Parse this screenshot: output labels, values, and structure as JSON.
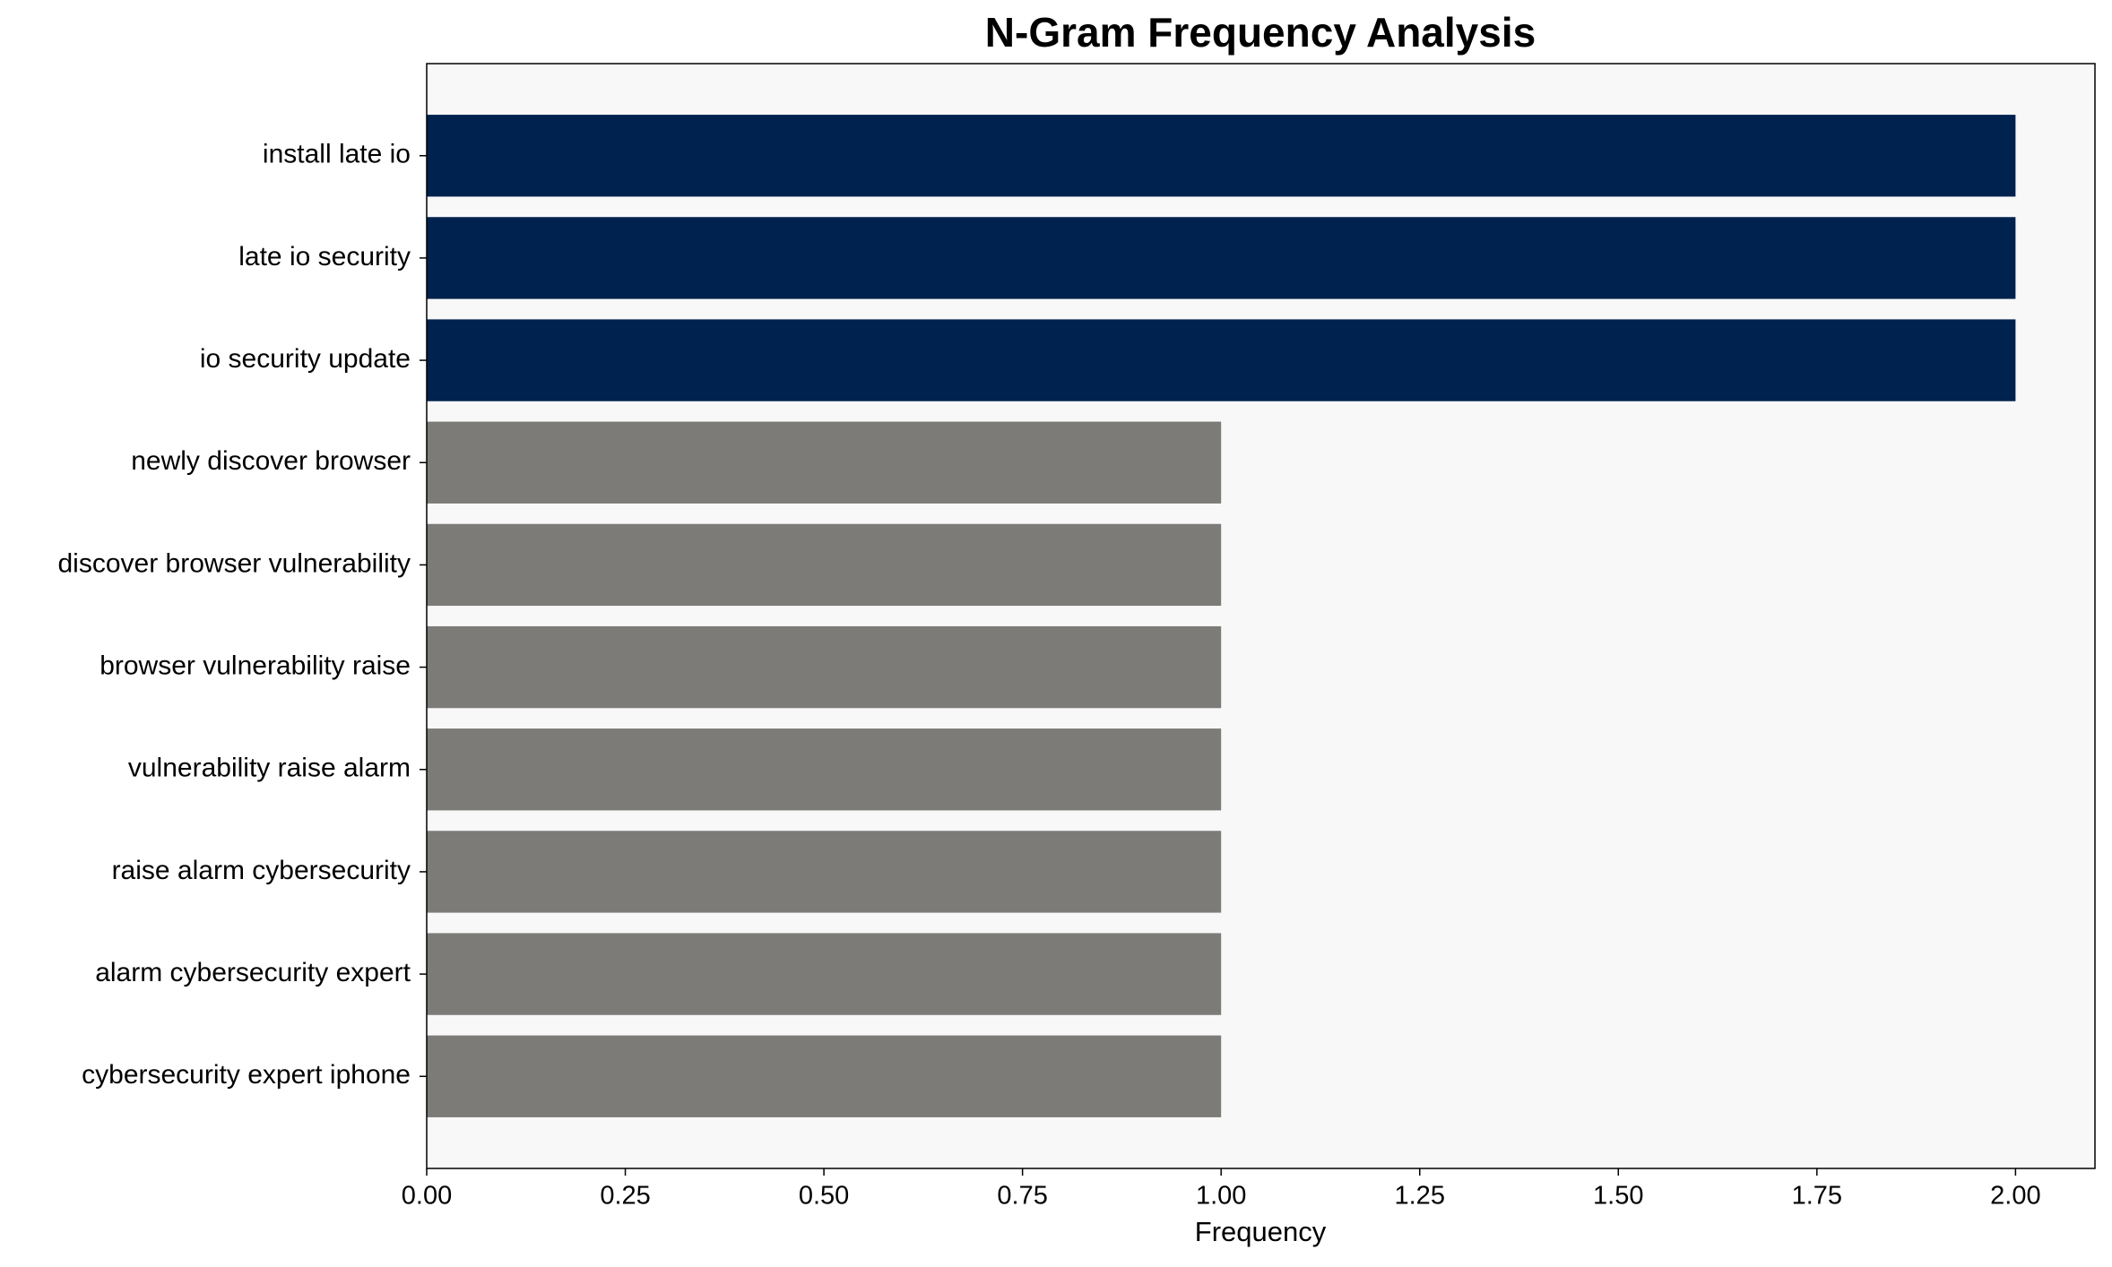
{
  "chart_data": {
    "type": "barh",
    "title": "N-Gram Frequency Analysis",
    "xlabel": "Frequency",
    "categories": [
      "install late io",
      "late io security",
      "io security update",
      "newly discover browser",
      "discover browser vulnerability",
      "browser vulnerability raise",
      "vulnerability raise alarm",
      "raise alarm cybersecurity",
      "alarm cybersecurity expert",
      "cybersecurity expert iphone"
    ],
    "values": [
      2,
      2,
      2,
      1,
      1,
      1,
      1,
      1,
      1,
      1
    ],
    "colors": [
      "#00224e",
      "#00224e",
      "#00224e",
      "#7c7b78",
      "#7c7b78",
      "#7c7b78",
      "#7c7b78",
      "#7c7b78",
      "#7c7b78",
      "#7c7b78"
    ],
    "xlim": [
      0,
      2.1
    ],
    "xticks": [
      {
        "value": 0,
        "label": "0.00"
      },
      {
        "value": 0.25,
        "label": "0.25"
      },
      {
        "value": 0.5,
        "label": "0.50"
      },
      {
        "value": 0.75,
        "label": "0.75"
      },
      {
        "value": 1,
        "label": "1.00"
      },
      {
        "value": 1.25,
        "label": "1.25"
      },
      {
        "value": 1.5,
        "label": "1.50"
      },
      {
        "value": 1.75,
        "label": "1.75"
      },
      {
        "value": 2,
        "label": "2.00"
      }
    ],
    "background": "#f8f8f8"
  }
}
